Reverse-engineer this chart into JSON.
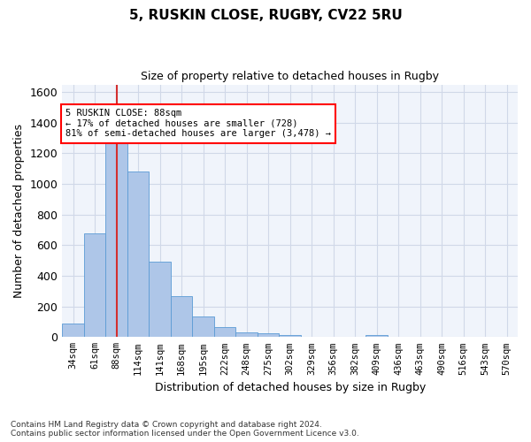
{
  "title1": "5, RUSKIN CLOSE, RUGBY, CV22 5RU",
  "title2": "Size of property relative to detached houses in Rugby",
  "xlabel": "Distribution of detached houses by size in Rugby",
  "ylabel": "Number of detached properties",
  "categories": [
    "34sqm",
    "61sqm",
    "88sqm",
    "114sqm",
    "141sqm",
    "168sqm",
    "195sqm",
    "222sqm",
    "248sqm",
    "275sqm",
    "302sqm",
    "329sqm",
    "356sqm",
    "382sqm",
    "409sqm",
    "436sqm",
    "463sqm",
    "490sqm",
    "516sqm",
    "543sqm",
    "570sqm"
  ],
  "values": [
    90,
    680,
    1350,
    1080,
    490,
    270,
    135,
    65,
    30,
    25,
    15,
    0,
    0,
    0,
    15,
    0,
    0,
    0,
    0,
    0,
    0
  ],
  "bar_color": "#aec6e8",
  "bar_edge_color": "#5b9bd5",
  "highlight_bar_index": 2,
  "highlight_color": "#d32f2f",
  "ylim": [
    0,
    1650
  ],
  "yticks": [
    0,
    200,
    400,
    600,
    800,
    1000,
    1200,
    1400,
    1600
  ],
  "annotation_line1": "5 RUSKIN CLOSE: 88sqm",
  "annotation_line2": "← 17% of detached houses are smaller (728)",
  "annotation_line3": "81% of semi-detached houses are larger (3,478) →",
  "footer_line1": "Contains HM Land Registry data © Crown copyright and database right 2024.",
  "footer_line2": "Contains public sector information licensed under the Open Government Licence v3.0.",
  "grid_color": "#d0d8e8",
  "background_color": "#f0f4fb"
}
